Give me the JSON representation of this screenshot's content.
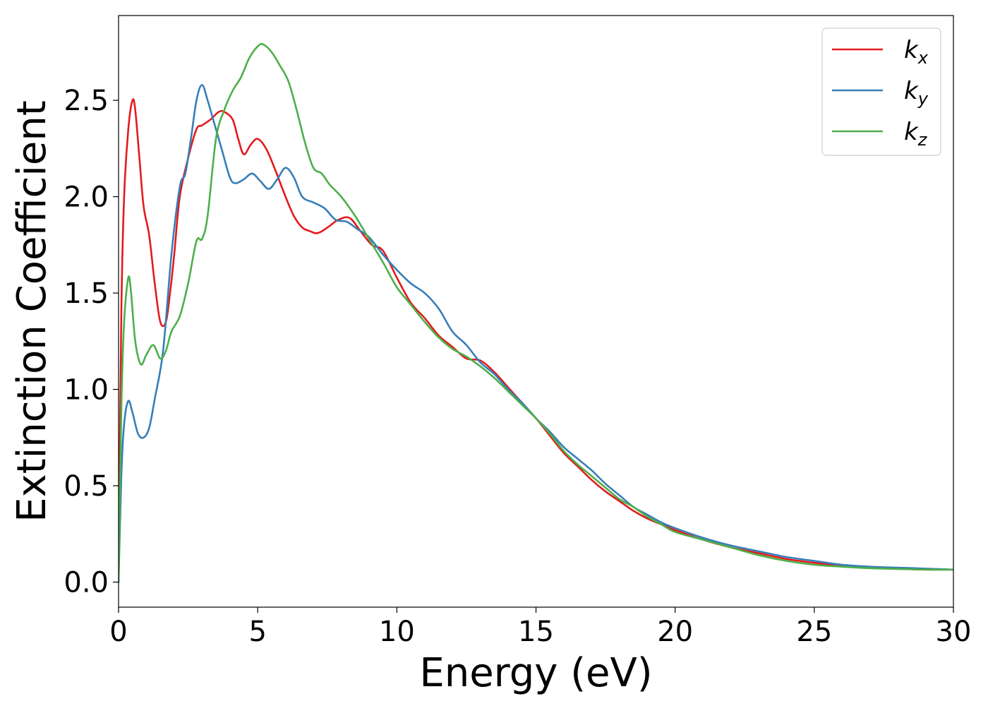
{
  "chart_data": {
    "type": "line",
    "title": "",
    "xlabel": "Energy (eV)",
    "ylabel": "Extinction Coefficient",
    "xlim": [
      0,
      30
    ],
    "ylim": [
      -0.13,
      2.94
    ],
    "xticks": [
      0,
      5,
      10,
      15,
      20,
      25,
      30
    ],
    "xtick_labels": [
      "0",
      "5",
      "10",
      "15",
      "20",
      "25",
      "30"
    ],
    "yticks": [
      0.0,
      0.5,
      1.0,
      1.5,
      2.0,
      2.5
    ],
    "ytick_labels": [
      "0.0",
      "0.5",
      "1.0",
      "1.5",
      "2.0",
      "2.5"
    ],
    "grid": false,
    "legend_position": "top-right",
    "series": [
      {
        "name": "k_x",
        "label_base": "k",
        "label_sub": "x",
        "color": "#e41a1c",
        "x": [
          0,
          0.1,
          0.2,
          0.35,
          0.5,
          0.6,
          0.75,
          0.9,
          1.1,
          1.3,
          1.5,
          1.7,
          1.85,
          2.0,
          2.2,
          2.5,
          2.8,
          3.0,
          3.3,
          3.6,
          3.8,
          4.1,
          4.3,
          4.5,
          4.75,
          5.0,
          5.3,
          5.6,
          6.0,
          6.3,
          6.6,
          6.9,
          7.1,
          7.3,
          7.6,
          7.9,
          8.3,
          8.7,
          9.1,
          9.5,
          10.0,
          10.5,
          11.0,
          11.5,
          12.0,
          12.5,
          13.0,
          13.5,
          14.0,
          14.5,
          15.0,
          15.5,
          16.0,
          16.5,
          17.0,
          17.5,
          18.0,
          18.5,
          19.0,
          19.5,
          20.0,
          21.0,
          22.0,
          23.0,
          24.0,
          25.0,
          26.0,
          27.0,
          28.0,
          29.0,
          30.0
        ],
        "y": [
          0.0,
          1.4,
          2.0,
          2.35,
          2.5,
          2.45,
          2.2,
          1.95,
          1.8,
          1.55,
          1.35,
          1.35,
          1.5,
          1.7,
          2.0,
          2.2,
          2.35,
          2.37,
          2.4,
          2.44,
          2.44,
          2.4,
          2.3,
          2.22,
          2.27,
          2.3,
          2.25,
          2.15,
          2.0,
          1.9,
          1.84,
          1.82,
          1.81,
          1.82,
          1.85,
          1.88,
          1.89,
          1.82,
          1.75,
          1.72,
          1.58,
          1.45,
          1.37,
          1.28,
          1.22,
          1.16,
          1.15,
          1.09,
          1.01,
          0.93,
          0.85,
          0.76,
          0.67,
          0.6,
          0.53,
          0.47,
          0.42,
          0.37,
          0.33,
          0.3,
          0.27,
          0.22,
          0.18,
          0.15,
          0.12,
          0.1,
          0.085,
          0.075,
          0.07,
          0.065,
          0.065
        ]
      },
      {
        "name": "k_y",
        "label_base": "k",
        "label_sub": "y",
        "color": "#377eb8",
        "x": [
          0,
          0.1,
          0.2,
          0.35,
          0.5,
          0.7,
          0.9,
          1.1,
          1.3,
          1.6,
          1.9,
          2.2,
          2.4,
          2.6,
          2.8,
          3.0,
          3.2,
          3.4,
          3.7,
          4.0,
          4.2,
          4.5,
          4.8,
          5.1,
          5.4,
          5.7,
          6.0,
          6.3,
          6.6,
          7.0,
          7.4,
          7.8,
          8.2,
          8.6,
          9.0,
          9.5,
          10.0,
          10.5,
          11.0,
          11.5,
          12.0,
          12.5,
          13.0,
          13.5,
          14.0,
          14.5,
          15.0,
          15.5,
          16.0,
          16.5,
          17.0,
          17.5,
          18.0,
          18.5,
          19.0,
          19.5,
          20.0,
          21.0,
          22.0,
          23.0,
          24.0,
          25.0,
          26.0,
          27.0,
          28.0,
          29.0,
          30.0
        ],
        "y": [
          0.0,
          0.55,
          0.82,
          0.94,
          0.88,
          0.77,
          0.75,
          0.8,
          0.95,
          1.2,
          1.7,
          2.05,
          2.12,
          2.3,
          2.5,
          2.58,
          2.5,
          2.4,
          2.25,
          2.1,
          2.07,
          2.09,
          2.12,
          2.08,
          2.04,
          2.09,
          2.15,
          2.1,
          2.0,
          1.97,
          1.94,
          1.88,
          1.87,
          1.83,
          1.79,
          1.7,
          1.62,
          1.55,
          1.5,
          1.42,
          1.3,
          1.23,
          1.14,
          1.08,
          1.0,
          0.93,
          0.85,
          0.78,
          0.7,
          0.64,
          0.58,
          0.51,
          0.45,
          0.39,
          0.35,
          0.31,
          0.28,
          0.23,
          0.19,
          0.16,
          0.13,
          0.11,
          0.09,
          0.08,
          0.075,
          0.07,
          0.065
        ]
      },
      {
        "name": "k_z",
        "label_base": "k",
        "label_sub": "z",
        "color": "#4daf4a",
        "x": [
          0,
          0.1,
          0.2,
          0.35,
          0.45,
          0.6,
          0.8,
          1.0,
          1.25,
          1.5,
          1.7,
          1.9,
          2.2,
          2.5,
          2.8,
          3.0,
          3.2,
          3.5,
          3.8,
          4.1,
          4.4,
          4.7,
          5.0,
          5.2,
          5.5,
          5.8,
          6.1,
          6.4,
          6.7,
          7.0,
          7.3,
          7.6,
          8.0,
          8.5,
          9.0,
          9.5,
          10.0,
          10.5,
          11.0,
          11.5,
          12.0,
          12.5,
          13.0,
          13.5,
          14.0,
          14.5,
          15.0,
          15.5,
          16.0,
          16.5,
          17.0,
          17.5,
          18.0,
          18.5,
          19.0,
          19.5,
          20.0,
          21.0,
          22.0,
          23.0,
          24.0,
          25.0,
          26.0,
          27.0,
          28.0,
          29.0,
          30.0
        ],
        "y": [
          0.0,
          0.9,
          1.35,
          1.58,
          1.5,
          1.25,
          1.13,
          1.18,
          1.23,
          1.16,
          1.2,
          1.3,
          1.38,
          1.55,
          1.77,
          1.78,
          1.9,
          2.3,
          2.45,
          2.55,
          2.62,
          2.72,
          2.78,
          2.79,
          2.75,
          2.68,
          2.6,
          2.45,
          2.28,
          2.15,
          2.12,
          2.06,
          2.0,
          1.9,
          1.78,
          1.66,
          1.53,
          1.44,
          1.35,
          1.27,
          1.21,
          1.17,
          1.12,
          1.06,
          0.99,
          0.92,
          0.85,
          0.77,
          0.68,
          0.61,
          0.55,
          0.49,
          0.43,
          0.39,
          0.34,
          0.3,
          0.26,
          0.22,
          0.18,
          0.14,
          0.11,
          0.09,
          0.08,
          0.072,
          0.068,
          0.065,
          0.065
        ]
      }
    ]
  }
}
